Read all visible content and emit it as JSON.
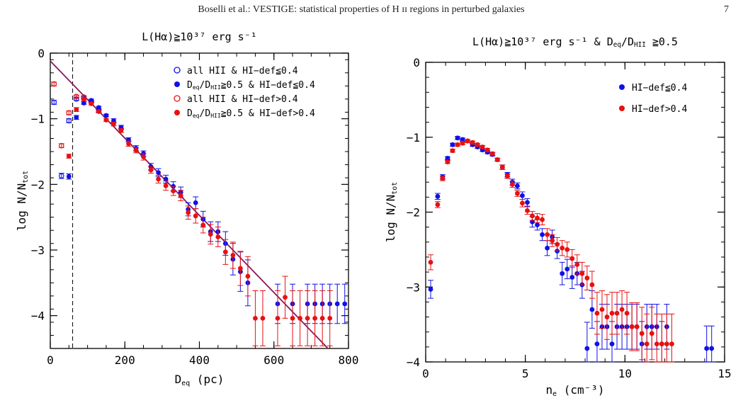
{
  "header": {
    "running_title": "Boselli et al.: VESTIGE: statistical properties of H ɪɪ regions in perturbed galaxies",
    "page_number": "7"
  },
  "colors": {
    "blue": "#1010e8",
    "red": "#e81010",
    "fit": "#8b1a5a",
    "axis": "#000000"
  },
  "chart_data": [
    {
      "type": "scatter",
      "title": "L(Hα)≧10³⁷ erg s⁻¹",
      "xlabel": "D_eq    (pc)",
      "ylabel": "log N/N_tot",
      "xlim": [
        0,
        800
      ],
      "ylim": [
        -4.5,
        0
      ],
      "xticks": [
        0,
        200,
        400,
        600,
        800
      ],
      "yticks": [
        0,
        -1,
        -2,
        -3,
        -4
      ],
      "xtick_labels": [
        "0",
        "200",
        "400",
        "600",
        "800"
      ],
      "ytick_labels": [
        "0",
        "−1",
        "−2",
        "−3",
        "−4"
      ],
      "vline_x": 60,
      "fit_line": {
        "x": [
          0,
          745
        ],
        "y": [
          -0.12,
          -4.5
        ]
      },
      "legend_position": "top-right",
      "legend": [
        {
          "label": "all HII & HI−def≦0.4",
          "marker": "open",
          "color": "blue"
        },
        {
          "label": "D_eq/D_HII≧0.5 & HI−def≦0.4",
          "marker": "filled",
          "color": "blue"
        },
        {
          "label": "all HII & HI−def>0.4",
          "marker": "open",
          "color": "red"
        },
        {
          "label": "D_eq/D_HII≧0.5 & HI−def>0.4",
          "marker": "filled",
          "color": "red"
        }
      ],
      "series": [
        {
          "marker": "open",
          "color": "blue",
          "x": [
            10,
            30,
            50,
            70,
            90,
            110,
            130
          ],
          "y": [
            -0.75,
            -1.87,
            -1.03,
            -0.7,
            -0.68,
            -0.74,
            -0.88
          ],
          "err": [
            0.03,
            0.04,
            0.03,
            0.02,
            0.02,
            0.02,
            0.02
          ]
        },
        {
          "marker": "filled",
          "color": "blue",
          "x": [
            50,
            70,
            90,
            110,
            130,
            150,
            170,
            190,
            210,
            230,
            250,
            270,
            290,
            310,
            330,
            350,
            370,
            390,
            410,
            430,
            450,
            470,
            490,
            510,
            530,
            610,
            650,
            690,
            710,
            730,
            750,
            770,
            790
          ],
          "y": [
            -1.88,
            -0.98,
            -0.76,
            -0.72,
            -0.83,
            -0.95,
            -1.03,
            -1.13,
            -1.32,
            -1.45,
            -1.53,
            -1.73,
            -1.82,
            -1.92,
            -2.03,
            -2.12,
            -2.38,
            -2.28,
            -2.53,
            -2.72,
            -2.72,
            -2.9,
            -3.14,
            -3.33,
            -3.5,
            -3.82,
            -3.82,
            -3.82,
            -3.82,
            -3.82,
            -3.82,
            -3.82,
            -3.82
          ],
          "err": [
            0.04,
            0.03,
            0.02,
            0.02,
            0.02,
            0.02,
            0.03,
            0.03,
            0.03,
            0.04,
            0.04,
            0.05,
            0.06,
            0.06,
            0.07,
            0.08,
            0.1,
            0.09,
            0.12,
            0.15,
            0.15,
            0.18,
            0.24,
            0.3,
            0.35,
            0.3,
            0.3,
            0.3,
            0.3,
            0.3,
            0.3,
            0.3,
            0.3
          ]
        },
        {
          "marker": "open",
          "color": "red",
          "x": [
            10,
            30,
            50,
            70,
            90
          ],
          "y": [
            -0.47,
            -1.41,
            -0.91,
            -0.66,
            -0.67
          ],
          "err": [
            0.03,
            0.03,
            0.03,
            0.02,
            0.02
          ]
        },
        {
          "marker": "filled",
          "color": "red",
          "x": [
            50,
            70,
            90,
            110,
            130,
            150,
            170,
            190,
            210,
            230,
            250,
            270,
            290,
            310,
            330,
            350,
            370,
            390,
            410,
            430,
            450,
            470,
            490,
            510,
            530,
            550,
            570,
            610,
            630,
            650,
            670,
            690,
            710,
            730,
            750
          ],
          "y": [
            -1.57,
            -0.86,
            -0.7,
            -0.77,
            -0.89,
            -1.02,
            -1.08,
            -1.18,
            -1.38,
            -1.48,
            -1.58,
            -1.78,
            -1.92,
            -2.02,
            -2.1,
            -2.17,
            -2.43,
            -2.48,
            -2.62,
            -2.76,
            -2.8,
            -3.03,
            -3.08,
            -3.28,
            -3.4,
            -4.04,
            -4.04,
            -4.04,
            -3.72,
            -4.04,
            -4.04,
            -4.04,
            -4.04,
            -4.04,
            -4.04
          ],
          "err": [
            0.03,
            0.03,
            0.02,
            0.02,
            0.02,
            0.02,
            0.03,
            0.03,
            0.04,
            0.04,
            0.05,
            0.05,
            0.06,
            0.07,
            0.07,
            0.08,
            0.1,
            0.11,
            0.12,
            0.15,
            0.15,
            0.19,
            0.2,
            0.26,
            0.3,
            0.42,
            0.42,
            0.42,
            0.32,
            0.42,
            0.42,
            0.42,
            0.42,
            0.42,
            0.42
          ]
        }
      ]
    },
    {
      "type": "scatter",
      "title": "L(Hα)≧10³⁷ erg s⁻¹ & D_eq/D_HII ≧0.5",
      "xlabel": "n_e    (cm⁻³)",
      "ylabel": "log N/N_tot",
      "xlim": [
        0,
        15
      ],
      "ylim": [
        -4,
        0
      ],
      "xticks": [
        0,
        5,
        10,
        15
      ],
      "yticks": [
        0,
        -1,
        -2,
        -3,
        -4
      ],
      "xtick_labels": [
        "0",
        "5",
        "10",
        "15"
      ],
      "ytick_labels": [
        "0",
        "−1",
        "−2",
        "−3",
        "−4"
      ],
      "legend_position": "top-right",
      "legend": [
        {
          "label": "HI−def≦0.4",
          "marker": "filled",
          "color": "blue"
        },
        {
          "label": "HI−def>0.4",
          "marker": "filled",
          "color": "red"
        }
      ],
      "series": [
        {
          "marker": "filled",
          "color": "blue",
          "x": [
            0.25,
            0.6,
            0.85,
            1.1,
            1.35,
            1.6,
            1.85,
            2.1,
            2.35,
            2.6,
            2.85,
            3.1,
            3.35,
            3.6,
            3.85,
            4.1,
            4.35,
            4.6,
            4.85,
            5.1,
            5.35,
            5.6,
            5.85,
            6.1,
            6.35,
            6.6,
            6.85,
            7.1,
            7.35,
            7.6,
            7.85,
            8.1,
            8.35,
            8.6,
            8.85,
            9.1,
            9.35,
            9.6,
            9.85,
            10.1,
            10.35,
            10.6,
            10.85,
            11.1,
            11.35,
            11.6,
            11.85,
            12.1,
            14.1,
            14.35
          ],
          "y": [
            -3.03,
            -1.79,
            -1.53,
            -1.28,
            -1.1,
            -1.01,
            -1.03,
            -1.05,
            -1.1,
            -1.13,
            -1.17,
            -1.2,
            -1.23,
            -1.3,
            -1.4,
            -1.5,
            -1.6,
            -1.65,
            -1.78,
            -1.87,
            -2.13,
            -2.17,
            -2.3,
            -2.48,
            -2.33,
            -2.52,
            -2.82,
            -2.76,
            -2.87,
            -2.82,
            -2.97,
            -3.82,
            -3.3,
            -3.76,
            -3.53,
            -3.53,
            -3.76,
            -3.53,
            -3.53,
            -3.53,
            -3.53,
            -3.53,
            -3.76,
            -3.53,
            -3.53,
            -3.53,
            -3.76,
            -3.53,
            -3.82,
            -3.82
          ],
          "err": [
            0.12,
            0.04,
            0.03,
            0.02,
            0.02,
            0.02,
            0.02,
            0.02,
            0.02,
            0.02,
            0.02,
            0.02,
            0.02,
            0.02,
            0.03,
            0.03,
            0.04,
            0.04,
            0.05,
            0.05,
            0.07,
            0.07,
            0.08,
            0.1,
            0.09,
            0.1,
            0.15,
            0.13,
            0.15,
            0.15,
            0.18,
            0.35,
            0.25,
            0.3,
            0.3,
            0.3,
            0.3,
            0.3,
            0.3,
            0.3,
            0.3,
            0.3,
            0.3,
            0.3,
            0.3,
            0.3,
            0.3,
            0.3,
            0.3,
            0.3
          ]
        },
        {
          "marker": "filled",
          "color": "red",
          "x": [
            0.25,
            0.6,
            0.85,
            1.1,
            1.35,
            1.6,
            1.85,
            2.1,
            2.35,
            2.6,
            2.85,
            3.1,
            3.35,
            3.6,
            3.85,
            4.1,
            4.35,
            4.6,
            4.85,
            5.1,
            5.35,
            5.6,
            5.85,
            6.1,
            6.35,
            6.6,
            6.85,
            7.1,
            7.35,
            7.6,
            7.85,
            8.1,
            8.35,
            8.6,
            8.85,
            9.1,
            9.35,
            9.6,
            9.85,
            10.1,
            10.35,
            10.6,
            10.85,
            11.1,
            11.35,
            11.6,
            11.85,
            12.1,
            12.35
          ],
          "y": [
            -2.67,
            -1.9,
            -1.55,
            -1.33,
            -1.18,
            -1.1,
            -1.08,
            -1.05,
            -1.07,
            -1.1,
            -1.13,
            -1.17,
            -1.22,
            -1.3,
            -1.4,
            -1.52,
            -1.63,
            -1.75,
            -1.88,
            -1.98,
            -2.05,
            -2.08,
            -2.1,
            -2.3,
            -2.38,
            -2.43,
            -2.48,
            -2.5,
            -2.62,
            -2.7,
            -2.82,
            -2.88,
            -2.97,
            -3.35,
            -3.3,
            -3.4,
            -3.35,
            -3.35,
            -3.3,
            -3.35,
            -3.53,
            -3.53,
            -3.62,
            -3.76,
            -3.62,
            -3.76,
            -3.76,
            -3.76,
            -3.76
          ],
          "err": [
            0.1,
            0.04,
            0.03,
            0.02,
            0.02,
            0.02,
            0.02,
            0.02,
            0.02,
            0.02,
            0.02,
            0.02,
            0.02,
            0.02,
            0.03,
            0.03,
            0.04,
            0.04,
            0.05,
            0.05,
            0.06,
            0.06,
            0.07,
            0.08,
            0.08,
            0.09,
            0.1,
            0.1,
            0.12,
            0.13,
            0.15,
            0.16,
            0.18,
            0.28,
            0.25,
            0.3,
            0.28,
            0.28,
            0.25,
            0.28,
            0.32,
            0.32,
            0.35,
            0.4,
            0.35,
            0.4,
            0.4,
            0.4,
            0.4
          ]
        }
      ]
    }
  ]
}
